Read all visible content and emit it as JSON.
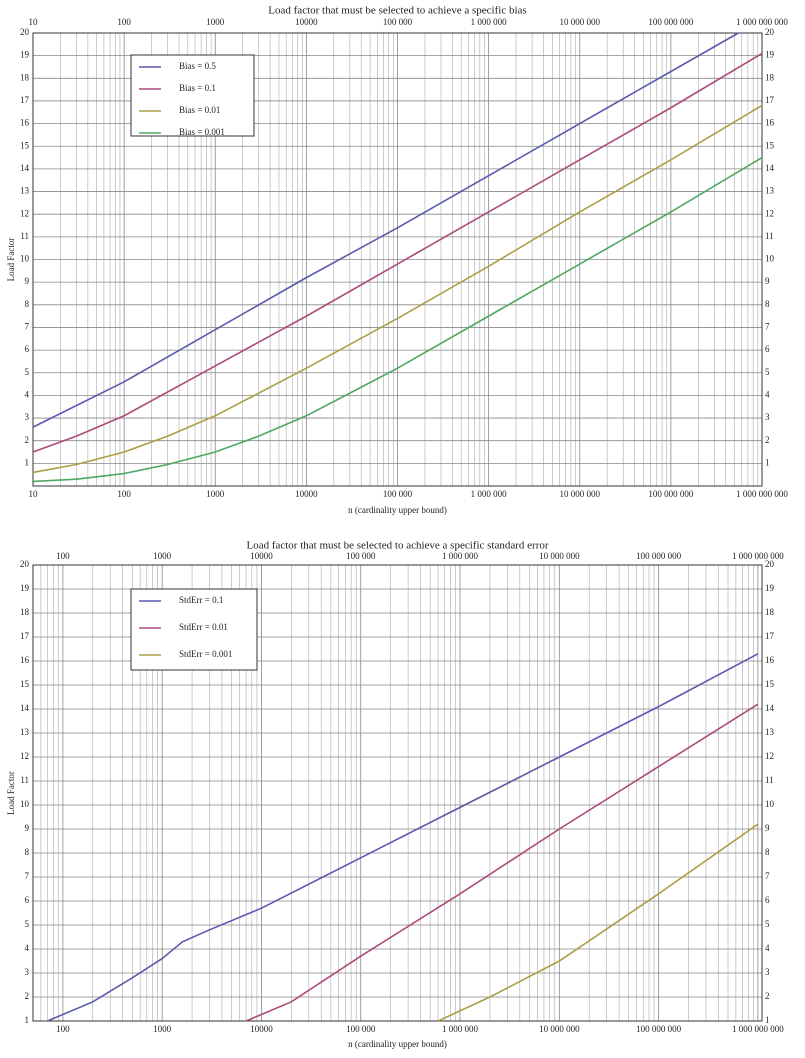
{
  "chart_data": [
    {
      "type": "line",
      "title": "Load factor that must be selected to achieve a specific bias",
      "xlabel": "n (cardinality upper bound)",
      "ylabel": "Load Factor",
      "xscale": "log",
      "xlim": [
        10,
        1000000000.0
      ],
      "ylim": [
        0,
        20
      ],
      "xticks": [
        10,
        100,
        1000,
        10000,
        {
          "value": 100000,
          "label": "100 000"
        },
        {
          "value": 1000000,
          "label": "1 000 000"
        },
        {
          "value": 10000000,
          "label": "10 000 000"
        },
        {
          "value": 100000000,
          "label": "100 000 000"
        },
        {
          "value": 1000000000,
          "label": "1 000 000 000"
        }
      ],
      "xticks_minor": [
        20,
        30,
        40,
        50,
        60,
        70,
        80,
        90,
        200,
        300,
        400,
        500,
        600,
        700,
        800,
        900,
        2000,
        3000,
        4000,
        5000,
        6000,
        7000,
        8000,
        9000,
        20000.0,
        30000.0,
        40000.0,
        50000.0,
        60000.0,
        70000.0,
        80000.0,
        90000.0,
        200000.0,
        300000.0,
        400000.0,
        500000.0,
        600000.0,
        700000.0,
        800000.0,
        900000.0,
        2000000.0,
        3000000.0,
        4000000.0,
        5000000.0,
        6000000.0,
        7000000.0,
        8000000.0,
        9000000.0,
        20000000.0,
        30000000.0,
        40000000.0,
        50000000.0,
        60000000.0,
        70000000.0,
        80000000.0,
        90000000.0,
        200000000.0,
        300000000.0,
        400000000.0,
        500000000.0,
        600000000.0,
        700000000.0,
        800000000.0,
        900000000.0
      ],
      "yticks": [
        1,
        2,
        3,
        4,
        5,
        6,
        7,
        8,
        9,
        10,
        11,
        12,
        13,
        14,
        15,
        16,
        17,
        18,
        19,
        20
      ],
      "grid": true,
      "legend": "upper left",
      "series": [
        {
          "name": "Bias = 0.5",
          "color": "#5a5aaf",
          "x": [
            10,
            100,
            1000,
            10000.0,
            100000.0,
            1000000.0,
            10000000.0,
            100000000.0,
            550000000.0
          ],
          "values": [
            2.6,
            4.6,
            6.9,
            9.2,
            11.4,
            13.7,
            16.0,
            18.3,
            20
          ]
        },
        {
          "name": "Bias = 0.1",
          "color": "#ad4a7c",
          "x": [
            10,
            30,
            100,
            1000,
            10000.0,
            100000.0,
            1000000.0,
            10000000.0,
            100000000.0,
            1000000000.0
          ],
          "values": [
            1.5,
            2.2,
            3.1,
            5.3,
            7.5,
            9.8,
            12.1,
            14.4,
            16.7,
            19.1
          ]
        },
        {
          "name": "Bias = 0.01",
          "color": "#ad9e45",
          "x": [
            10,
            30,
            100,
            300,
            1000,
            3000,
            10000.0,
            100000.0,
            1000000.0,
            10000000.0,
            100000000.0,
            1000000000.0
          ],
          "values": [
            0.6,
            0.95,
            1.5,
            2.2,
            3.1,
            4.1,
            5.2,
            7.4,
            9.7,
            12.1,
            14.4,
            16.8
          ]
        },
        {
          "name": "Bias = 0.001",
          "color": "#4ea862",
          "x": [
            10,
            30,
            100,
            300,
            1000,
            3000,
            10000.0,
            30000.0,
            100000.0,
            1000000.0,
            10000000.0,
            100000000.0,
            1000000000.0
          ],
          "values": [
            0.2,
            0.3,
            0.55,
            0.95,
            1.5,
            2.2,
            3.1,
            4.1,
            5.2,
            7.5,
            9.8,
            12.1,
            14.5
          ]
        }
      ]
    },
    {
      "type": "line",
      "title": "Load factor that must be selected to achieve a specific standard error",
      "xlabel": "n (cardinality upper bound)",
      "ylabel": "Load Factor",
      "xscale": "log",
      "xlim": [
        50,
        1100000000.0
      ],
      "ylim": [
        1,
        20
      ],
      "xticks": [
        100,
        1000,
        10000,
        {
          "value": 100000,
          "label": "100 000"
        },
        {
          "value": 1000000,
          "label": "1 000 000"
        },
        {
          "value": 10000000,
          "label": "10 000 000"
        },
        {
          "value": 100000000,
          "label": "100 000 000"
        },
        {
          "value": 1000000000,
          "label": "1 000 000 000"
        }
      ],
      "xticks_minor": [
        50,
        60,
        70,
        80,
        90,
        200,
        300,
        400,
        500,
        600,
        700,
        800,
        900,
        2000,
        3000,
        4000,
        5000,
        6000,
        7000,
        8000,
        9000,
        20000.0,
        30000.0,
        40000.0,
        50000.0,
        60000.0,
        70000.0,
        80000.0,
        90000.0,
        200000.0,
        300000.0,
        400000.0,
        500000.0,
        600000.0,
        700000.0,
        800000.0,
        900000.0,
        2000000.0,
        3000000.0,
        4000000.0,
        5000000.0,
        6000000.0,
        7000000.0,
        8000000.0,
        9000000.0,
        20000000.0,
        30000000.0,
        40000000.0,
        50000000.0,
        60000000.0,
        70000000.0,
        80000000.0,
        90000000.0,
        200000000.0,
        300000000.0,
        400000000.0,
        500000000.0,
        600000000.0,
        700000000.0,
        800000000.0,
        900000000.0
      ],
      "yticks": [
        1,
        2,
        3,
        4,
        5,
        6,
        7,
        8,
        9,
        10,
        11,
        12,
        13,
        14,
        15,
        16,
        17,
        18,
        19,
        20
      ],
      "grid": true,
      "legend": "upper left",
      "series": [
        {
          "name": "StdErr = 0.1",
          "color": "#5a5aaf",
          "x": [
            70,
            200,
            500,
            1000,
            1600,
            3000,
            10000.0,
            100000.0,
            1000000.0,
            10000000.0,
            100000000.0,
            1000000000.0
          ],
          "values": [
            1,
            1.8,
            2.8,
            3.6,
            4.3,
            4.8,
            5.7,
            7.8,
            9.9,
            12.0,
            14.1,
            16.3
          ]
        },
        {
          "name": "StdErr = 0.01",
          "color": "#ad4a7c",
          "x": [
            7000,
            20000.0,
            100000.0,
            1000000.0,
            10000000.0,
            100000000.0,
            1000000000.0
          ],
          "values": [
            1,
            1.8,
            3.7,
            6.3,
            9.0,
            11.6,
            14.2
          ]
        },
        {
          "name": "StdErr = 0.001",
          "color": "#ad9e45",
          "x": [
            600000.0,
            2000000.0,
            10000000.0,
            100000000.0,
            1000000000.0
          ],
          "values": [
            1,
            2.0,
            3.5,
            6.3,
            9.2
          ]
        }
      ]
    }
  ]
}
